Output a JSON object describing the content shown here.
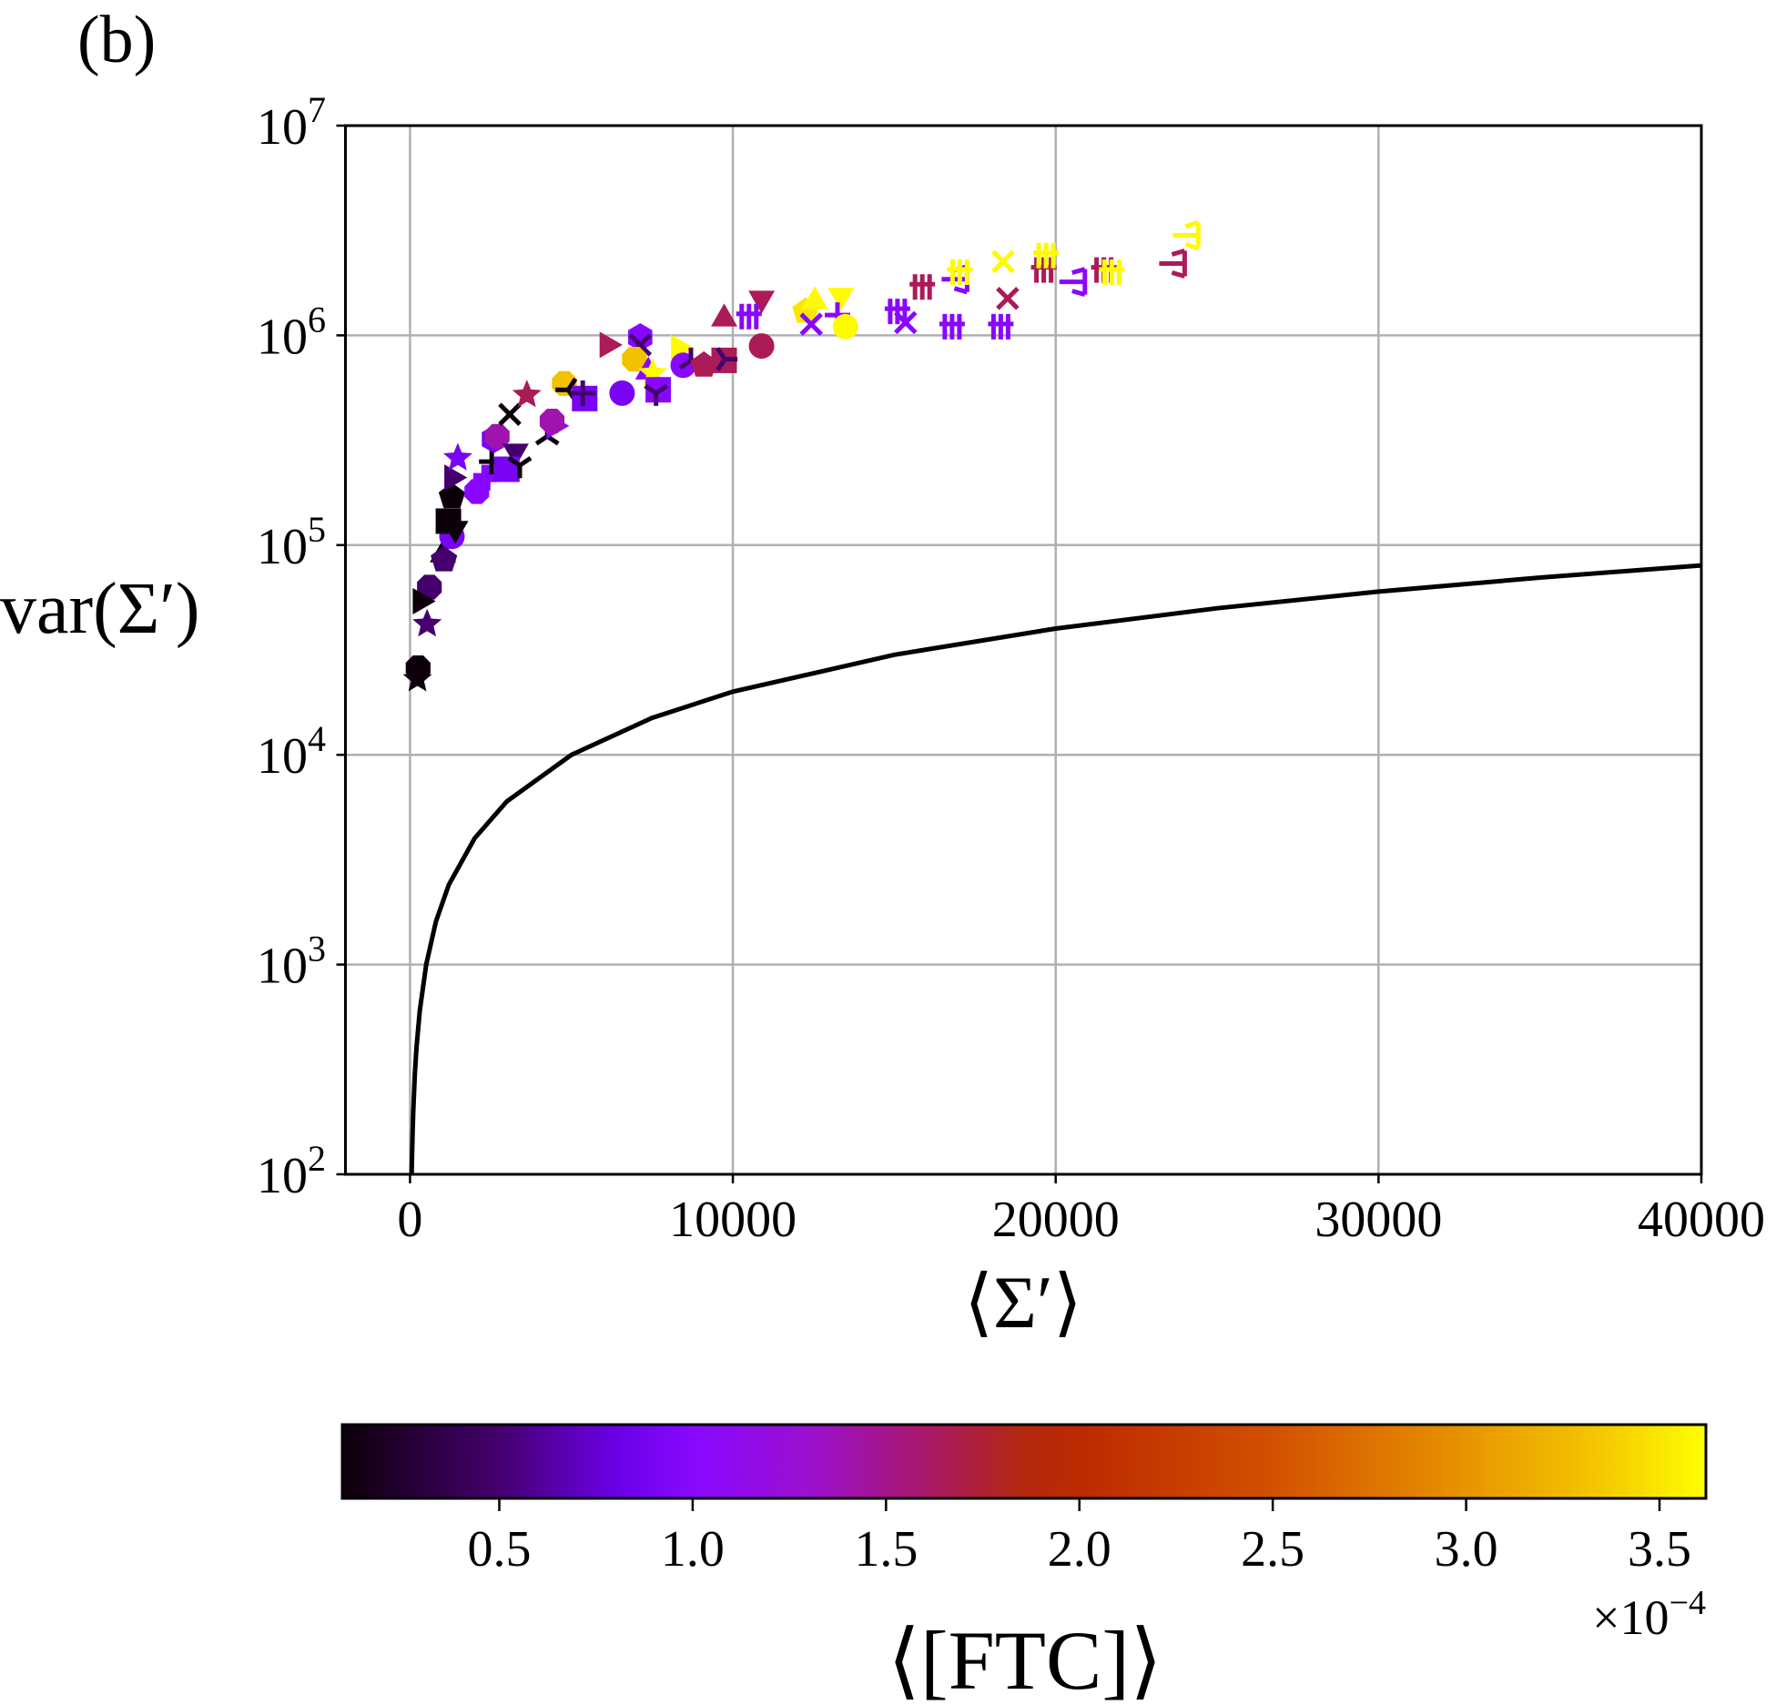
{
  "panel_label": "(b)",
  "chart_data": {
    "type": "scatter",
    "xlabel": "⟨Σ′⟩",
    "ylabel": "var(Σ′)",
    "xlim": [
      -2000,
      40000
    ],
    "ylim": [
      100,
      10000000
    ],
    "yscale": "log",
    "grid": true,
    "x_ticks": [
      {
        "value": 0,
        "label": "0"
      },
      {
        "value": 10000,
        "label": "10000"
      },
      {
        "value": 20000,
        "label": "20000"
      },
      {
        "value": 30000,
        "label": "30000"
      },
      {
        "value": 40000,
        "label": "40000"
      }
    ],
    "y_ticks": [
      {
        "value": 100,
        "base": "10",
        "exp": "2"
      },
      {
        "value": 1000,
        "base": "10",
        "exp": "3"
      },
      {
        "value": 10000,
        "base": "10",
        "exp": "4"
      },
      {
        "value": 100000,
        "base": "10",
        "exp": "5"
      },
      {
        "value": 1000000,
        "base": "10",
        "exp": "6"
      },
      {
        "value": 10000000,
        "base": "10",
        "exp": "7"
      }
    ],
    "reference_line": {
      "color": "#000000",
      "x": [
        50,
        60,
        80,
        100,
        150,
        200,
        300,
        500,
        800,
        1200,
        2000,
        3000,
        5000,
        7500,
        10000,
        15000,
        20000,
        25000,
        30000,
        35000,
        40000
      ],
      "y": [
        100,
        120,
        160,
        200,
        300,
        400,
        600,
        1000,
        1600,
        2400,
        4000,
        6000,
        10000,
        15000,
        20000,
        30000,
        40000,
        50000,
        60000,
        70000,
        80000
      ]
    },
    "colorbar": {
      "label": "⟨[FTC]⟩",
      "range": [
        0.094,
        3.62
      ],
      "multiplier_base": "×10",
      "multiplier_exp": "−4",
      "ticks": [
        "0.5",
        "1.0",
        "1.5",
        "2.0",
        "2.5",
        "3.0",
        "3.5"
      ],
      "tick_values": [
        0.5,
        1.0,
        1.5,
        2.0,
        2.5,
        3.0,
        3.5
      ],
      "colormap": [
        [
          0.094,
          "#0c0008"
        ],
        [
          0.5,
          "#45006e"
        ],
        [
          0.8,
          "#6a00e6"
        ],
        [
          1.0,
          "#8808ff"
        ],
        [
          1.3,
          "#9c10d0"
        ],
        [
          1.6,
          "#a8186a"
        ],
        [
          1.85,
          "#b42810"
        ],
        [
          2.0,
          "#bb2a00"
        ],
        [
          2.5,
          "#d25000"
        ],
        [
          3.0,
          "#e89400"
        ],
        [
          3.35,
          "#f4c800"
        ],
        [
          3.62,
          "#ffff00"
        ]
      ]
    },
    "points": [
      {
        "x": 250,
        "y": 26000,
        "c": 0.1,
        "m": "8"
      },
      {
        "x": 230,
        "y": 23000,
        "c": 0.1,
        "m": "*"
      },
      {
        "x": 600,
        "y": 63000,
        "c": 0.5,
        "m": "8"
      },
      {
        "x": 320,
        "y": 54000,
        "c": 0.1,
        "m": ">"
      },
      {
        "x": 530,
        "y": 42000,
        "c": 0.5,
        "m": "*"
      },
      {
        "x": 1020,
        "y": 90000,
        "c": 0.1,
        "m": "^"
      },
      {
        "x": 1050,
        "y": 85000,
        "c": 0.5,
        "m": "p"
      },
      {
        "x": 1300,
        "y": 110000,
        "c": 0.9,
        "m": "o"
      },
      {
        "x": 1190,
        "y": 130000,
        "c": 0.1,
        "m": "s"
      },
      {
        "x": 1400,
        "y": 120000,
        "c": 0.1,
        "m": "v"
      },
      {
        "x": 1300,
        "y": 170000,
        "c": 0.1,
        "m": "p"
      },
      {
        "x": 1300,
        "y": 210000,
        "c": 0.5,
        "m": ">"
      },
      {
        "x": 1480,
        "y": 260000,
        "c": 0.9,
        "m": "*"
      },
      {
        "x": 2070,
        "y": 180000,
        "c": 1.0,
        "m": "8"
      },
      {
        "x": 2350,
        "y": 210000,
        "c": 1.0,
        "m": "P"
      },
      {
        "x": 2530,
        "y": 250000,
        "c": 0.1,
        "m": "+"
      },
      {
        "x": 2600,
        "y": 320000,
        "c": 0.9,
        "m": "h"
      },
      {
        "x": 2700,
        "y": 330000,
        "c": 1.4,
        "m": "8"
      },
      {
        "x": 3270,
        "y": 280000,
        "c": 0.5,
        "m": "v"
      },
      {
        "x": 3000,
        "y": 230000,
        "c": 0.9,
        "m": "s"
      },
      {
        "x": 3400,
        "y": 240000,
        "c": 0.1,
        "m": "1"
      },
      {
        "x": 3090,
        "y": 420000,
        "c": 0.1,
        "m": "x"
      },
      {
        "x": 3620,
        "y": 520000,
        "c": 1.65,
        "m": "*"
      },
      {
        "x": 4250,
        "y": 330000,
        "c": 0.1,
        "m": "2"
      },
      {
        "x": 4460,
        "y": 370000,
        "c": 1.0,
        "m": ">"
      },
      {
        "x": 4400,
        "y": 390000,
        "c": 1.4,
        "m": "8"
      },
      {
        "x": 4780,
        "y": 590000,
        "c": 3.3,
        "m": "8"
      },
      {
        "x": 4900,
        "y": 550000,
        "c": 0.1,
        "m": "3"
      },
      {
        "x": 5410,
        "y": 500000,
        "c": 0.9,
        "m": "s"
      },
      {
        "x": 5350,
        "y": 530000,
        "c": 0.5,
        "m": "+"
      },
      {
        "x": 6570,
        "y": 530000,
        "c": 0.9,
        "m": "o"
      },
      {
        "x": 6110,
        "y": 900000,
        "c": 1.65,
        "m": ">"
      },
      {
        "x": 7130,
        "y": 980000,
        "c": 1.0,
        "m": "h"
      },
      {
        "x": 7130,
        "y": 900000,
        "c": 0.5,
        "m": "x"
      },
      {
        "x": 6950,
        "y": 770000,
        "c": 3.3,
        "m": "8"
      },
      {
        "x": 7380,
        "y": 670000,
        "c": 1.0,
        "m": "^"
      },
      {
        "x": 7520,
        "y": 660000,
        "c": 3.6,
        "m": "*"
      },
      {
        "x": 7690,
        "y": 550000,
        "c": 1.0,
        "m": "s"
      },
      {
        "x": 7620,
        "y": 530000,
        "c": 0.5,
        "m": "1"
      },
      {
        "x": 8320,
        "y": 870000,
        "c": 3.6,
        "m": ">"
      },
      {
        "x": 8460,
        "y": 720000,
        "c": 1.0,
        "m": "o"
      },
      {
        "x": 8700,
        "y": 760000,
        "c": 0.5,
        "m": "2"
      },
      {
        "x": 9100,
        "y": 720000,
        "c": 1.65,
        "m": "p"
      },
      {
        "x": 9730,
        "y": 760000,
        "c": 1.65,
        "m": "s"
      },
      {
        "x": 9750,
        "y": 770000,
        "c": 0.5,
        "m": "4"
      },
      {
        "x": 10890,
        "y": 890000,
        "c": 1.65,
        "m": "o"
      },
      {
        "x": 9730,
        "y": 1200000,
        "c": 1.65,
        "m": "^"
      },
      {
        "x": 10890,
        "y": 1500000,
        "c": 1.65,
        "m": "v"
      },
      {
        "x": 10500,
        "y": 1230000,
        "c": 1.0,
        "m": "#"
      },
      {
        "x": 12250,
        "y": 1300000,
        "c": 3.5,
        "m": "p"
      },
      {
        "x": 12540,
        "y": 1450000,
        "c": 3.6,
        "m": "^"
      },
      {
        "x": 12430,
        "y": 1130000,
        "c": 1.0,
        "m": "x"
      },
      {
        "x": 13350,
        "y": 1550000,
        "c": 3.6,
        "m": "v"
      },
      {
        "x": 13240,
        "y": 1250000,
        "c": 1.0,
        "m": "+"
      },
      {
        "x": 13490,
        "y": 1100000,
        "c": 3.6,
        "m": "o"
      },
      {
        "x": 15100,
        "y": 1300000,
        "c": 1.0,
        "m": "#"
      },
      {
        "x": 15350,
        "y": 1150000,
        "c": 1.0,
        "m": "x"
      },
      {
        "x": 15870,
        "y": 1700000,
        "c": 1.65,
        "m": "#"
      },
      {
        "x": 16860,
        "y": 1850000,
        "c": 1.0,
        "m": "<"
      },
      {
        "x": 17030,
        "y": 2000000,
        "c": 3.6,
        "m": "#"
      },
      {
        "x": 16790,
        "y": 1100000,
        "c": 1.0,
        "m": "#"
      },
      {
        "x": 18300,
        "y": 1100000,
        "c": 1.0,
        "m": "#"
      },
      {
        "x": 18370,
        "y": 2250000,
        "c": 3.6,
        "m": "x"
      },
      {
        "x": 18510,
        "y": 1500000,
        "c": 1.65,
        "m": "x"
      },
      {
        "x": 19630,
        "y": 2050000,
        "c": 1.65,
        "m": "#"
      },
      {
        "x": 19700,
        "y": 2400000,
        "c": 3.6,
        "m": "#"
      },
      {
        "x": 20510,
        "y": 1800000,
        "c": 1.0,
        "m": "<"
      },
      {
        "x": 21490,
        "y": 2050000,
        "c": 1.65,
        "m": "#"
      },
      {
        "x": 21740,
        "y": 2000000,
        "c": 3.6,
        "m": "#"
      },
      {
        "x": 23600,
        "y": 2200000,
        "c": 1.65,
        "m": "<"
      },
      {
        "x": 24020,
        "y": 3000000,
        "c": 3.6,
        "m": "<"
      }
    ]
  }
}
